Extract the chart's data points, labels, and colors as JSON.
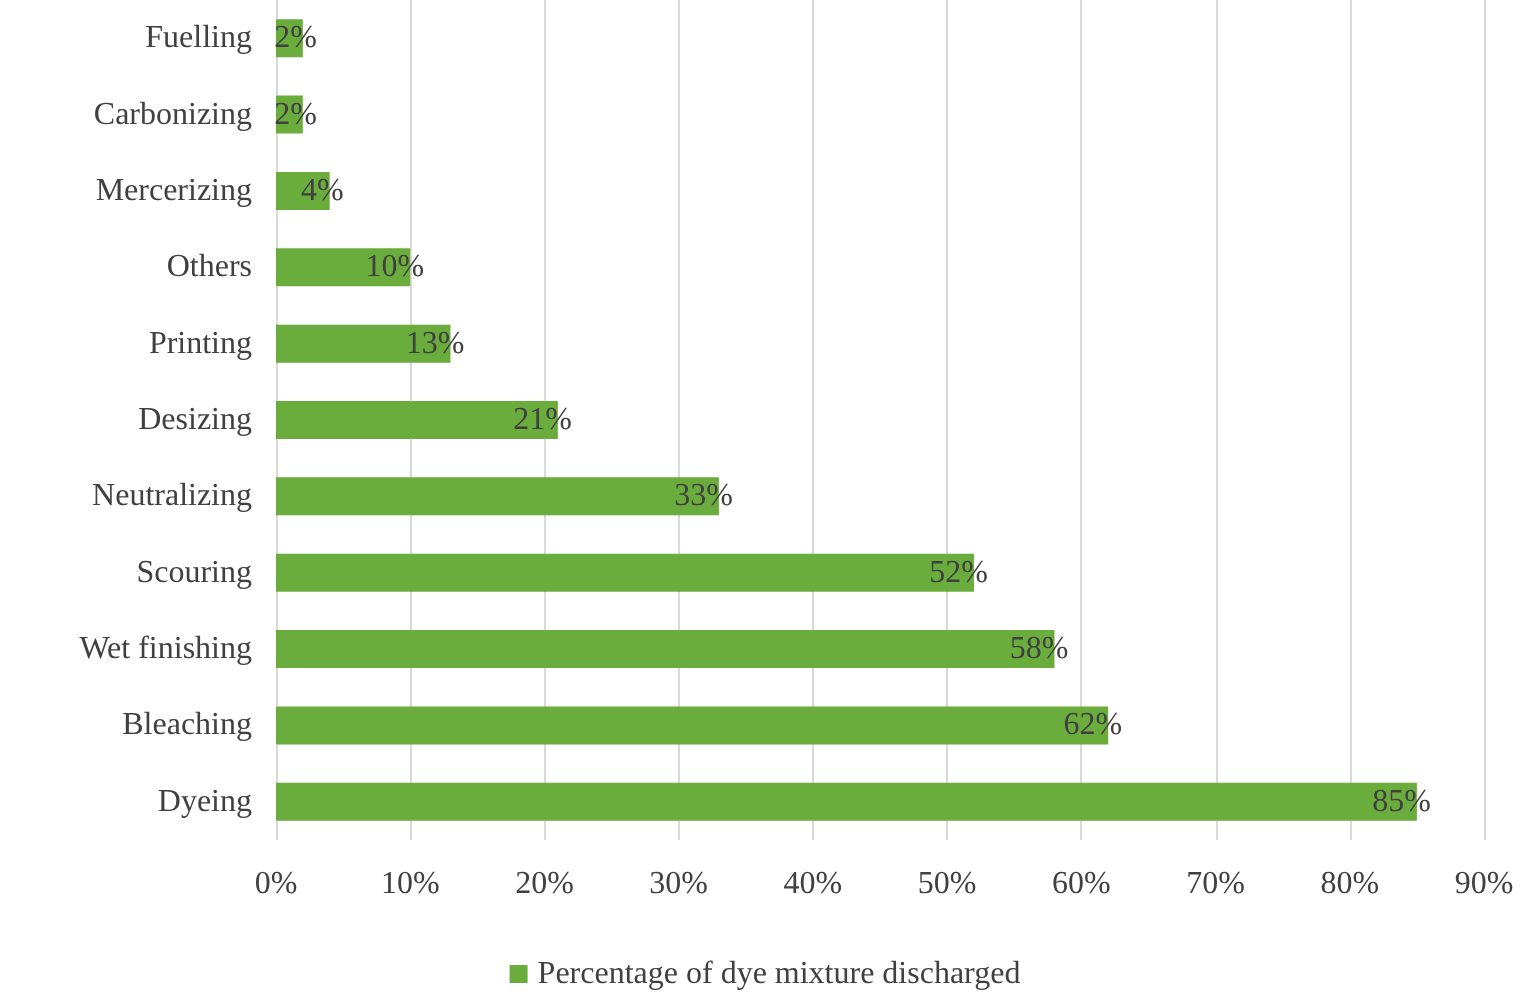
{
  "chart_data": {
    "type": "bar",
    "orientation": "horizontal",
    "categories": [
      "Fuelling",
      "Carbonizing",
      "Mercerizing",
      "Others",
      "Printing",
      "Desizing",
      "Neutralizing",
      "Scouring",
      "Wet finishing",
      "Bleaching",
      "Dyeing"
    ],
    "series": [
      {
        "name": "Percentage of dye mixture discharged",
        "color": "#6aad3d",
        "values": [
          2,
          2,
          4,
          10,
          13,
          21,
          33,
          52,
          58,
          62,
          85
        ],
        "value_labels": [
          "2%",
          "2%",
          "4%",
          "10%",
          "13%",
          "21%",
          "33%",
          "52%",
          "58%",
          "62%",
          "85%"
        ]
      }
    ],
    "xlim": [
      0,
      90
    ],
    "xticks": [
      {
        "value": 0,
        "label": "0%"
      },
      {
        "value": 10,
        "label": "10%"
      },
      {
        "value": 20,
        "label": "20%"
      },
      {
        "value": 30,
        "label": "30%"
      },
      {
        "value": 40,
        "label": "40%"
      },
      {
        "value": 50,
        "label": "50%"
      },
      {
        "value": 60,
        "label": "60%"
      },
      {
        "value": 70,
        "label": "70%"
      },
      {
        "value": 80,
        "label": "80%"
      },
      {
        "value": 90,
        "label": "90%"
      }
    ],
    "grid": "x",
    "legend": "bottom"
  }
}
